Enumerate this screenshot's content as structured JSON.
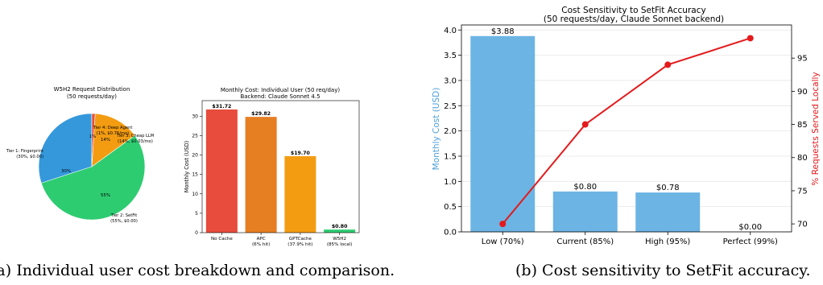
{
  "chart_data": [
    {
      "type": "pie",
      "title": "W5H2 Request Distribution",
      "subtitle": "(50 requests/day)",
      "slices": [
        {
          "label": "Tier 1: Fingerprint",
          "detail": "(30%, $0.00)",
          "value": 30,
          "pct": "30%",
          "color": "#3498db"
        },
        {
          "label": "Tier 2: SetFit",
          "detail": "(55%, $0.00)",
          "value": 55,
          "pct": "55%",
          "color": "#2ecc71"
        },
        {
          "label": "Tier 3: Cheap LLM",
          "detail": "(14%, $0.03/mo)",
          "value": 14,
          "pct": "14%",
          "color": "#f39c12"
        },
        {
          "label": "Tier 4: Deep Agent",
          "detail": "(1%, $0.76/mo)",
          "value": 1,
          "pct": "1%",
          "color": "#e74c3c"
        }
      ]
    },
    {
      "type": "bar",
      "title": "Monthly Cost: Individual User (50 req/day)",
      "subtitle": "Backend: Claude Sonnet 4.5",
      "ylabel": "Monthly Cost (USD)",
      "ylim": [
        0,
        34
      ],
      "yticks": [
        0,
        5,
        10,
        15,
        20,
        25,
        30
      ],
      "bars": [
        {
          "label": "No Cache",
          "sublabel": "",
          "value": 31.72,
          "text": "$31.72",
          "color": "#e74c3c"
        },
        {
          "label": "APC",
          "sublabel": "(6% hit)",
          "value": 29.82,
          "text": "$29.82",
          "color": "#e67e22"
        },
        {
          "label": "GPTCache",
          "sublabel": "(37.9% hit)",
          "value": 19.7,
          "text": "$19.70",
          "color": "#f39c12"
        },
        {
          "label": "W5H2",
          "sublabel": "(85% local)",
          "value": 0.8,
          "text": "$0.80",
          "color": "#2ecc71"
        }
      ]
    },
    {
      "type": "bar+line",
      "title": "Cost Sensitivity to SetFit Accuracy",
      "subtitle": "(50 requests/day, Claude Sonnet backend)",
      "categories": [
        "Low (70%)",
        "Current (85%)",
        "High (95%)",
        "Perfect (99%)"
      ],
      "bar_series": {
        "ylabel": "Monthly Cost (USD)",
        "values": [
          3.88,
          0.8,
          0.78,
          0.0
        ],
        "labels": [
          "$3.88",
          "$0.80",
          "$0.78",
          "$0.00"
        ],
        "color": "#6cb4e4",
        "ylim": [
          0,
          4.1
        ],
        "yticks": [
          "0.0",
          "0.5",
          "1.0",
          "1.5",
          "2.0",
          "2.5",
          "3.0",
          "3.5",
          "4.0"
        ]
      },
      "line_series": {
        "ylabel": "% Requests Served Locally",
        "values": [
          70,
          85,
          94,
          98
        ],
        "color": "#e41a1c",
        "ylim": [
          68.8,
          100
        ],
        "yticks": [
          70,
          75,
          80,
          85,
          90,
          95
        ]
      },
      "grid": true
    }
  ],
  "captions": {
    "a": "(a) Individual user cost breakdown and comparison.",
    "b": "(b) Cost sensitivity to SetFit accuracy."
  }
}
